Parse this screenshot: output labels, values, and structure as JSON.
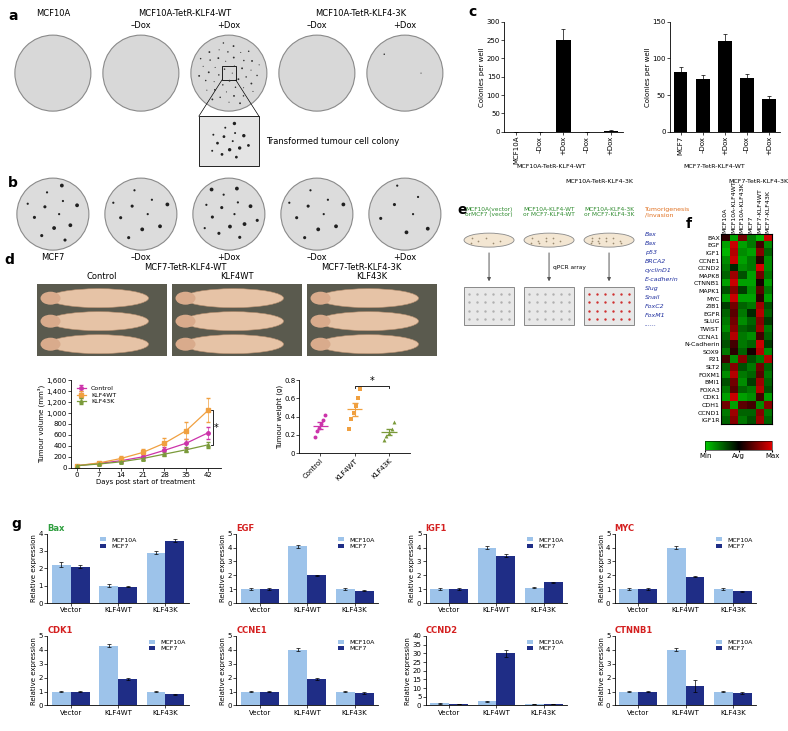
{
  "chart_data": [
    {
      "panel": "c",
      "type": "bar",
      "ylabel": "Colonies per well",
      "categories": [
        "MCF10A",
        "–Dox",
        "+Dox",
        "–Dox",
        "+Dox"
      ],
      "category_groups": [
        null,
        "MCF10A-TetR-KLF4-WT",
        "MCF10A-TetR-KLF4-WT",
        "MCF10A-TetR-KLF4-3K",
        "MCF10A-TetR-KLF4-3K"
      ],
      "values": [
        0,
        0,
        250,
        0,
        2
      ],
      "errors": [
        0,
        0,
        30,
        0,
        1
      ],
      "color": "#000000",
      "ylim": [
        0,
        300
      ],
      "yticks": [
        0,
        50,
        100,
        150,
        200,
        250,
        300
      ]
    },
    {
      "type": "bar",
      "ylabel": "Colonies per well",
      "categories": [
        "MCF7",
        "–Dox",
        "+Dox",
        "–Dox",
        "+Dox"
      ],
      "category_groups": [
        null,
        "MCF7-TetR-KLF4-WT",
        "MCF7-TetR-KLF4-WT",
        "MCF7-TetR-KLF4-3K",
        "MCF7-TetR-KLF4-3K"
      ],
      "values": [
        82,
        72,
        124,
        73,
        44
      ],
      "errors": [
        6,
        6,
        9,
        6,
        5
      ],
      "color": "#000000",
      "ylim": [
        0,
        150
      ],
      "yticks": [
        0,
        50,
        100,
        150
      ]
    },
    {
      "type": "line",
      "xlabel": "Days post start of treatment",
      "ylabel": "Tumour volume (mm³)",
      "x": [
        0,
        7,
        14,
        21,
        28,
        35,
        42
      ],
      "xlim": [
        -2,
        46
      ],
      "xticks": [
        0,
        7,
        14,
        21,
        28,
        35,
        42
      ],
      "ylim": [
        0,
        1600
      ],
      "yticks": [
        0,
        200,
        400,
        600,
        800,
        {
          "value": 1000,
          "label": "1,000"
        },
        {
          "value": 1200,
          "label": "1,200"
        },
        {
          "value": 1400,
          "label": "1,400"
        },
        {
          "value": 1600,
          "label": "1,600"
        }
      ],
      "legend": "upper left",
      "series": [
        {
          "name": "Control",
          "color": "#cc33aa",
          "marker": "circle",
          "values": [
            40,
            80,
            130,
            200,
            320,
            450,
            640
          ],
          "errors": [
            10,
            20,
            25,
            40,
            60,
            80,
            110
          ]
        },
        {
          "name": "KLF4WT",
          "color": "#f0a040",
          "marker": "square",
          "values": [
            40,
            90,
            170,
            280,
            450,
            680,
            1050
          ],
          "errors": [
            10,
            20,
            40,
            60,
            100,
            150,
            220
          ]
        },
        {
          "name": "KLF43K",
          "color": "#7a9a3a",
          "marker": "triangle",
          "values": [
            40,
            70,
            110,
            170,
            250,
            330,
            420
          ],
          "errors": [
            10,
            15,
            20,
            30,
            40,
            50,
            60
          ]
        }
      ],
      "significance": {
        "text": "*",
        "between": [
          "KLF4WT",
          "KLF43K"
        ]
      }
    },
    {
      "type": "scatter",
      "ylabel": "Tumour weight (g)",
      "ylim": [
        0,
        0.8
      ],
      "yticks": [
        0,
        0.2,
        0.4,
        0.6,
        0.8
      ],
      "series": [
        {
          "name": "Control",
          "color": "#cc33aa",
          "marker": "circle",
          "values": [
            0.18,
            0.24,
            0.28,
            0.32,
            0.36,
            0.42
          ],
          "mean": 0.3,
          "error": 0.04
        },
        {
          "name": "KLF4WT",
          "color": "#f0a040",
          "marker": "square",
          "values": [
            0.27,
            0.37,
            0.44,
            0.52,
            0.6,
            0.7
          ],
          "mean": 0.48,
          "error": 0.07
        },
        {
          "name": "KLF43K",
          "color": "#7a9a3a",
          "marker": "triangle",
          "values": [
            0.15,
            0.19,
            0.22,
            0.26,
            0.34
          ],
          "mean": 0.23,
          "error": 0.03
        }
      ],
      "significance": {
        "text": "*",
        "between": [
          "KLF4WT",
          "KLF43K"
        ]
      }
    },
    {
      "panel": "f",
      "type": "heatmap",
      "columns": [
        "MCF10A",
        "MCF10A-KLF4WT",
        "MCF10A-KLF43K",
        "MCF7",
        "MCF7-KLF4WT",
        "MCF7-KLF43K"
      ],
      "rows": [
        "BAX",
        "EGF",
        "IGF1",
        "CCNE1",
        "CCND2",
        "MAPK8",
        "CTNNB1",
        "MAPK1",
        "MYC",
        "ZIB1",
        "EGFR",
        "SLUG",
        "TWIST",
        "CCNA1",
        "N-Cadherin",
        "SOX9",
        "P21",
        "SLT2",
        "FOXM1",
        "BMI1",
        "FOXA3",
        "CDK1",
        "CDH1",
        "CCND1",
        "IGF1R"
      ],
      "cells": [
        [
          0.2,
          -0.8,
          0.5,
          -0.6,
          -0.9,
          0.9
        ],
        [
          -0.8,
          0.9,
          -0.8,
          -0.6,
          0.3,
          -0.7
        ],
        [
          -0.9,
          0.8,
          -0.7,
          -0.8,
          0.6,
          -0.5
        ],
        [
          -0.7,
          0.9,
          -0.8,
          -0.6,
          0.2,
          -0.7
        ],
        [
          -0.6,
          -0.2,
          -0.7,
          -0.6,
          0.95,
          -0.7
        ],
        [
          -0.5,
          0.7,
          -0.4,
          -0.8,
          0.5,
          -0.6
        ],
        [
          -0.8,
          0.9,
          -0.8,
          -0.8,
          0.1,
          -0.8
        ],
        [
          -0.4,
          0.6,
          -0.3,
          -0.7,
          0.4,
          -0.6
        ],
        [
          -0.8,
          0.9,
          -0.8,
          -0.8,
          0.2,
          -0.8
        ],
        [
          -0.3,
          0.5,
          -0.5,
          -0.6,
          0.7,
          -0.4
        ],
        [
          -0.5,
          0.4,
          -0.6,
          -0.2,
          0.8,
          -0.5
        ],
        [
          -0.6,
          0.5,
          -0.7,
          -0.5,
          0.6,
          -0.3
        ],
        [
          -0.7,
          0.6,
          -0.5,
          -0.4,
          0.7,
          -0.6
        ],
        [
          -0.5,
          0.8,
          -0.6,
          -0.7,
          0.3,
          -0.5
        ],
        [
          -0.4,
          0.3,
          -0.6,
          -0.5,
          0.9,
          -0.3
        ],
        [
          -0.6,
          0.2,
          -0.5,
          0.1,
          0.8,
          -0.7
        ],
        [
          0.3,
          -0.7,
          0.6,
          -0.4,
          -0.6,
          0.8
        ],
        [
          -0.5,
          0.6,
          -0.4,
          -0.6,
          0.5,
          -0.5
        ],
        [
          -0.7,
          0.8,
          -0.6,
          -0.5,
          0.4,
          -0.6
        ],
        [
          -0.4,
          0.5,
          -0.7,
          -0.3,
          0.7,
          -0.5
        ],
        [
          -0.6,
          0.4,
          -0.5,
          -0.6,
          0.8,
          -0.4
        ],
        [
          -0.8,
          0.9,
          -0.8,
          -0.7,
          0.3,
          -0.8
        ],
        [
          0.5,
          -0.8,
          0.4,
          0.3,
          -0.7,
          0.6
        ],
        [
          -0.6,
          0.7,
          -0.5,
          -0.5,
          0.6,
          -0.6
        ],
        [
          -0.5,
          0.6,
          -0.6,
          -0.4,
          0.7,
          -0.5
        ]
      ],
      "colorbar": {
        "range": [
          -1,
          1
        ],
        "ticks": [
          {
            "value": -1,
            "label": "Min"
          },
          {
            "value": 0,
            "label": "Avg"
          },
          {
            "value": 1,
            "label": "Max"
          }
        ]
      }
    },
    {
      "panel": "g",
      "type": "bar",
      "title": "Bax",
      "ylabel": "Relative expression",
      "categories": [
        "Vector",
        "KLF4WT",
        "KLF43K"
      ],
      "ylim": [
        0,
        4
      ],
      "yticks": [
        0,
        1,
        2,
        3,
        4
      ],
      "legend": "upper center",
      "series": [
        {
          "name": "MCF10A",
          "color": "#9dc3ea",
          "values": [
            2.2,
            1.0,
            2.9
          ],
          "errors": [
            0.15,
            0.1,
            0.1
          ]
        },
        {
          "name": "MCF7",
          "color": "#1f2d86",
          "values": [
            2.1,
            0.95,
            3.6
          ],
          "errors": [
            0.1,
            0.05,
            0.1
          ]
        }
      ]
    },
    {
      "type": "bar",
      "title": "EGF",
      "ylabel": "Relative expression",
      "categories": [
        "Vector",
        "KLF4WT",
        "KLF43K"
      ],
      "ylim": [
        0,
        5
      ],
      "yticks": [
        0,
        1,
        2,
        3,
        4,
        5
      ],
      "legend": "upper right",
      "series": [
        {
          "name": "MCF10A",
          "color": "#9dc3ea",
          "values": [
            1.0,
            4.1,
            1.0
          ],
          "errors": [
            0.05,
            0.1,
            0.05
          ]
        },
        {
          "name": "MCF7",
          "color": "#1f2d86",
          "values": [
            1.0,
            2.0,
            0.9
          ],
          "errors": [
            0.05,
            0.05,
            0.05
          ]
        }
      ]
    },
    {
      "type": "bar",
      "title": "IGF1",
      "ylabel": "Relative expression",
      "categories": [
        "Vector",
        "KLF4WT",
        "KLF43K"
      ],
      "ylim": [
        0,
        5
      ],
      "yticks": [
        0,
        1,
        2,
        3,
        4,
        5
      ],
      "legend": "upper right",
      "series": [
        {
          "name": "MCF10A",
          "color": "#9dc3ea",
          "values": [
            1.0,
            4.0,
            1.1
          ],
          "errors": [
            0.05,
            0.1,
            0.05
          ]
        },
        {
          "name": "MCF7",
          "color": "#1f2d86",
          "values": [
            1.0,
            3.4,
            1.5
          ],
          "errors": [
            0.05,
            0.1,
            0.05
          ]
        }
      ]
    },
    {
      "type": "bar",
      "title": "MYC",
      "ylabel": "Relative expression",
      "categories": [
        "Vector",
        "KLF4WT",
        "KLF43K"
      ],
      "ylim": [
        0,
        5
      ],
      "yticks": [
        0,
        1,
        2,
        3,
        4,
        5
      ],
      "legend": "upper right",
      "series": [
        {
          "name": "MCF10A",
          "color": "#9dc3ea",
          "values": [
            1.0,
            4.0,
            1.0
          ],
          "errors": [
            0.05,
            0.1,
            0.05
          ]
        },
        {
          "name": "MCF7",
          "color": "#1f2d86",
          "values": [
            1.0,
            1.9,
            0.85
          ],
          "errors": [
            0.05,
            0.05,
            0.05
          ]
        }
      ]
    },
    {
      "type": "bar",
      "title": "CDK1",
      "ylabel": "Relative expression",
      "categories": [
        "Vector",
        "KLF4WT",
        "KLF43K"
      ],
      "ylim": [
        0,
        5
      ],
      "yticks": [
        0,
        1,
        2,
        3,
        4,
        5
      ],
      "legend": "upper right",
      "series": [
        {
          "name": "MCF10A",
          "color": "#9dc3ea",
          "values": [
            1.0,
            4.3,
            1.0
          ],
          "errors": [
            0.05,
            0.1,
            0.05
          ]
        },
        {
          "name": "MCF7",
          "color": "#1f2d86",
          "values": [
            1.0,
            1.9,
            0.8
          ],
          "errors": [
            0.05,
            0.05,
            0.05
          ]
        }
      ]
    },
    {
      "type": "bar",
      "title": "CCNE1",
      "ylabel": "Relative expression",
      "categories": [
        "Vector",
        "KLF4WT",
        "KLF43K"
      ],
      "ylim": [
        0,
        5
      ],
      "yticks": [
        0,
        1,
        2,
        3,
        4,
        5
      ],
      "legend": "upper right",
      "series": [
        {
          "name": "MCF10A",
          "color": "#9dc3ea",
          "values": [
            1.0,
            4.0,
            1.0
          ],
          "errors": [
            0.05,
            0.1,
            0.05
          ]
        },
        {
          "name": "MCF7",
          "color": "#1f2d86",
          "values": [
            1.0,
            1.9,
            0.9
          ],
          "errors": [
            0.05,
            0.05,
            0.05
          ]
        }
      ]
    },
    {
      "type": "bar",
      "title": "CCND2",
      "ylabel": "Relative expression",
      "categories": [
        "Vector",
        "KLF4WT",
        "KLF43K"
      ],
      "ylim": [
        0,
        40
      ],
      "yticks": [
        0,
        5,
        10,
        15,
        20,
        25,
        30,
        35,
        40
      ],
      "legend": "upper right",
      "series": [
        {
          "name": "MCF10A",
          "color": "#9dc3ea",
          "values": [
            1.2,
            2.5,
            1.0
          ],
          "errors": [
            0.1,
            0.3,
            0.1
          ]
        },
        {
          "name": "MCF7",
          "color": "#1f2d86",
          "values": [
            1.0,
            30,
            0.8
          ],
          "errors": [
            0.1,
            2,
            0.1
          ]
        }
      ]
    },
    {
      "type": "bar",
      "title": "CTNNB1",
      "ylabel": "Relative expression",
      "categories": [
        "Vector",
        "KLF4WT",
        "KLF43K"
      ],
      "ylim": [
        0,
        5
      ],
      "yticks": [
        0,
        1,
        2,
        3,
        4,
        5
      ],
      "legend": "upper right",
      "series": [
        {
          "name": "MCF10A",
          "color": "#9dc3ea",
          "values": [
            1.0,
            4.0,
            1.0
          ],
          "errors": [
            0.05,
            0.1,
            0.05
          ]
        },
        {
          "name": "MCF7",
          "color": "#1f2d86",
          "values": [
            1.0,
            1.4,
            0.9
          ],
          "errors": [
            0.05,
            0.4,
            0.05
          ]
        }
      ]
    }
  ],
  "images": [
    {
      "panel": "a",
      "wells": [
        "MCF10A",
        "–Dox",
        "+Dox",
        "–Dox",
        "+Dox"
      ],
      "groups": [
        null,
        "MCF10A-TetR-KLF4-WT",
        "MCF10A-TetR-KLF4-WT",
        "MCF10A-TetR-KLF4-3K",
        "MCF10A-TetR-KLF4-3K"
      ],
      "inset": "Transformed tumour cell colony"
    },
    {
      "panel": "b",
      "wells": [
        "MCF7",
        "–Dox",
        "+Dox",
        "–Dox",
        "+Dox"
      ],
      "groups": [
        null,
        "MCF7-TetR-KLF4-WT",
        "MCF7-TetR-KLF4-WT",
        "MCF7-TetR-KLF4-3K",
        "MCF7-TetR-KLF4-3K"
      ]
    },
    {
      "panel": "d",
      "labels": [
        "Control",
        "KLF4WT",
        "KLF43K"
      ]
    }
  ],
  "diagram": {
    "panel": "e",
    "dishes": [
      "MCF10A(vector)\norMCF7 (vector)",
      "MCF10A-KLF4-WT\nor MCF7-KLF4-WT",
      "MCF10A-KLF4-3K\nor MCF7-KLF4-3K"
    ],
    "array_label": "qPCR array",
    "list_title": "Tumorigenesis\n/Invasion",
    "genes": [
      "Bax",
      "Bax",
      "p53",
      "BRCA2",
      "cyclinD1",
      "E-cadherin",
      "Slug",
      "Snail",
      "FoxC2",
      "FoxM1",
      "......"
    ]
  }
}
